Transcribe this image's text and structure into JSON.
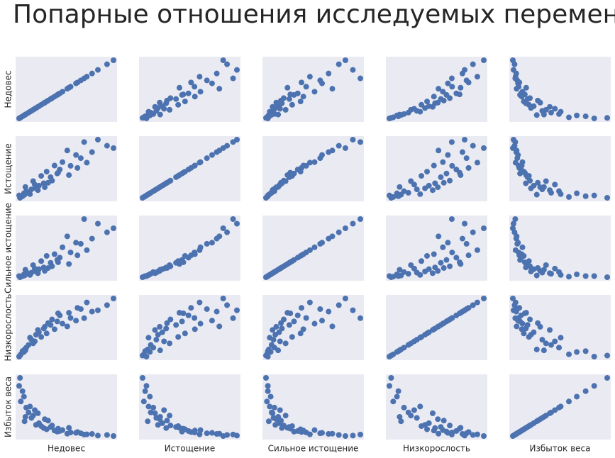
{
  "chart_data": {
    "type": "scatter-matrix",
    "title": "Попарные отношения исследуемых переменных",
    "series": [
      {
        "name": "Недовес",
        "color": "#4c72b0",
        "values": [
          3.2,
          5.1,
          1.4,
          8.7,
          12.4,
          18.9,
          25.3,
          35.6,
          42.8,
          2.2,
          6.5,
          10.1,
          15.7,
          21.4,
          30.2,
          4.0,
          7.3,
          9.6,
          13.8,
          16.4,
          20.1,
          27.9,
          33.1,
          38.4,
          1.0,
          2.9,
          5.8,
          11.2,
          14.5,
          19.3,
          23.7,
          28.6,
          45.9,
          3.6,
          8.1,
          12.9,
          17.6,
          24.5,
          31.8,
          0.6
        ]
      },
      {
        "name": "Истощение",
        "color": "#4c72b0",
        "values": [
          1.8,
          2.5,
          0.9,
          4.2,
          6.1,
          9.8,
          12.7,
          17.9,
          20.3,
          1.2,
          3.8,
          5.2,
          8.4,
          14.1,
          15.6,
          3.1,
          6.9,
          3.5,
          10.5,
          7.1,
          11.3,
          16.8,
          13.9,
          22.6,
          0.6,
          2.3,
          2.0,
          8.9,
          6.3,
          10.1,
          18.5,
          11.9,
          19.4,
          4.7,
          5.6,
          4.6,
          12.8,
          9.2,
          21.7,
          1.5
        ]
      },
      {
        "name": "Сильное истощение",
        "color": "#4c72b0",
        "values": [
          0.4,
          0.7,
          0.2,
          1.1,
          1.8,
          3.1,
          4.4,
          6.8,
          7.9,
          0.3,
          0.9,
          1.5,
          2.6,
          5.3,
          5.9,
          1.0,
          2.2,
          0.8,
          3.8,
          2.0,
          3.5,
          6.1,
          4.8,
          9.4,
          0.1,
          0.6,
          0.5,
          2.9,
          1.7,
          2.7,
          7.2,
          3.9,
          8.6,
          1.4,
          1.6,
          1.2,
          4.1,
          2.4,
          10.2,
          0.3
        ]
      },
      {
        "name": "Низкорослость",
        "color": "#4c72b0",
        "values": [
          9.5,
          14.2,
          4.5,
          24.8,
          31.2,
          38.5,
          42.1,
          48.7,
          55.4,
          7.8,
          19.6,
          27.3,
          34.9,
          36.2,
          51.3,
          11.4,
          15.8,
          29.7,
          26.1,
          40.6,
          44.8,
          39.4,
          58.2,
          50.1,
          3.2,
          6.9,
          21.7,
          22.5,
          36.8,
          46.9,
          33.4,
          52.6,
          62.3,
          8.6,
          17.9,
          33.0,
          30.5,
          47.5,
          41.9,
          2.1
        ]
      },
      {
        "name": "Избыток веса",
        "color": "#4c72b0",
        "values": [
          8.1,
          12.3,
          17.5,
          6.4,
          4.9,
          3.2,
          2.8,
          2.1,
          1.6,
          22.4,
          9.7,
          7.2,
          5.4,
          3.9,
          2.4,
          14.6,
          10.8,
          11.9,
          4.3,
          6.1,
          3.5,
          2.6,
          1.9,
          1.3,
          28.7,
          19.8,
          15.1,
          5.8,
          8.4,
          4.6,
          2.2,
          3.0,
          1.1,
          10.2,
          13.4,
          9.1,
          3.7,
          5.0,
          1.8,
          24.9
        ]
      }
    ]
  }
}
